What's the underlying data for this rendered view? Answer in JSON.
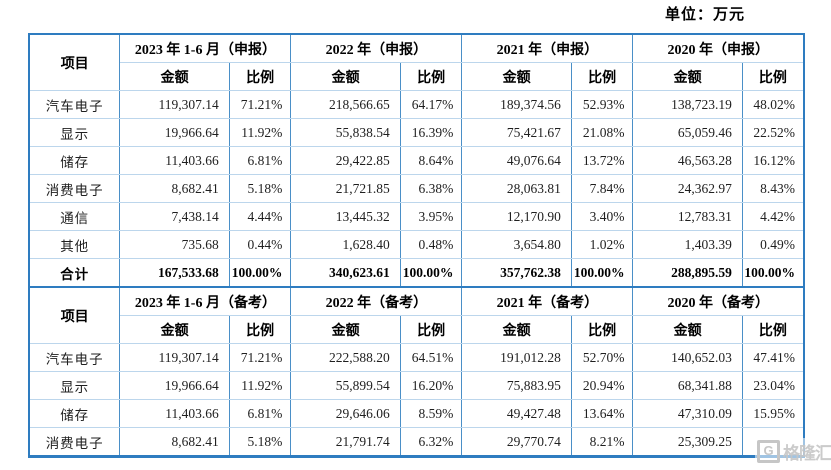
{
  "unit_label": "单位：万元",
  "watermark": {
    "g": "G",
    "text": "格隆汇"
  },
  "colors": {
    "border_strong": "#2e7cc0",
    "border_vertical": "#4a8fc7",
    "border_horizontal": "#bcd6ec",
    "border_mid": "#6da3d4",
    "watermark_gray": "#c6c6c6"
  },
  "table": {
    "col_headers": {
      "item": "项目",
      "amount": "金额",
      "ratio": "比例"
    },
    "sections": [
      {
        "period_headers": [
          "2023 年 1-6 月（申报）",
          "2022 年（申报）",
          "2021 年（申报）",
          "2020 年（申报）"
        ],
        "rows": [
          {
            "item": "汽车电子",
            "total": false,
            "cells": [
              "119,307.14",
              "71.21%",
              "218,566.65",
              "64.17%",
              "189,374.56",
              "52.93%",
              "138,723.19",
              "48.02%"
            ]
          },
          {
            "item": "显示",
            "total": false,
            "cells": [
              "19,966.64",
              "11.92%",
              "55,838.54",
              "16.39%",
              "75,421.67",
              "21.08%",
              "65,059.46",
              "22.52%"
            ]
          },
          {
            "item": "储存",
            "total": false,
            "cells": [
              "11,403.66",
              "6.81%",
              "29,422.85",
              "8.64%",
              "49,076.64",
              "13.72%",
              "46,563.28",
              "16.12%"
            ]
          },
          {
            "item": "消费电子",
            "total": false,
            "cells": [
              "8,682.41",
              "5.18%",
              "21,721.85",
              "6.38%",
              "28,063.81",
              "7.84%",
              "24,362.97",
              "8.43%"
            ]
          },
          {
            "item": "通信",
            "total": false,
            "cells": [
              "7,438.14",
              "4.44%",
              "13,445.32",
              "3.95%",
              "12,170.90",
              "3.40%",
              "12,783.31",
              "4.42%"
            ]
          },
          {
            "item": "其他",
            "total": false,
            "cells": [
              "735.68",
              "0.44%",
              "1,628.40",
              "0.48%",
              "3,654.80",
              "1.02%",
              "1,403.39",
              "0.49%"
            ]
          },
          {
            "item": "合计",
            "total": true,
            "cells": [
              "167,533.68",
              "100.00%",
              "340,623.61",
              "100.00%",
              "357,762.38",
              "100.00%",
              "288,895.59",
              "100.00%"
            ]
          }
        ]
      },
      {
        "period_headers": [
          "2023 年 1-6 月（备考）",
          "2022 年（备考）",
          "2021 年（备考）",
          "2020 年（备考）"
        ],
        "rows": [
          {
            "item": "汽车电子",
            "total": false,
            "cells": [
              "119,307.14",
              "71.21%",
              "222,588.20",
              "64.51%",
              "191,012.28",
              "52.70%",
              "140,652.03",
              "47.41%"
            ]
          },
          {
            "item": "显示",
            "total": false,
            "cells": [
              "19,966.64",
              "11.92%",
              "55,899.54",
              "16.20%",
              "75,883.95",
              "20.94%",
              "68,341.88",
              "23.04%"
            ]
          },
          {
            "item": "储存",
            "total": false,
            "cells": [
              "11,403.66",
              "6.81%",
              "29,646.06",
              "8.59%",
              "49,427.48",
              "13.64%",
              "47,310.09",
              "15.95%"
            ]
          },
          {
            "item": "消费电子",
            "total": false,
            "cells": [
              "8,682.41",
              "5.18%",
              "21,791.74",
              "6.32%",
              "29,770.74",
              "8.21%",
              "25,309.25",
              ""
            ]
          }
        ]
      }
    ],
    "column_widths_pct": {
      "item": 11.8,
      "amount": 14.2,
      "ratio": 8.0
    }
  }
}
